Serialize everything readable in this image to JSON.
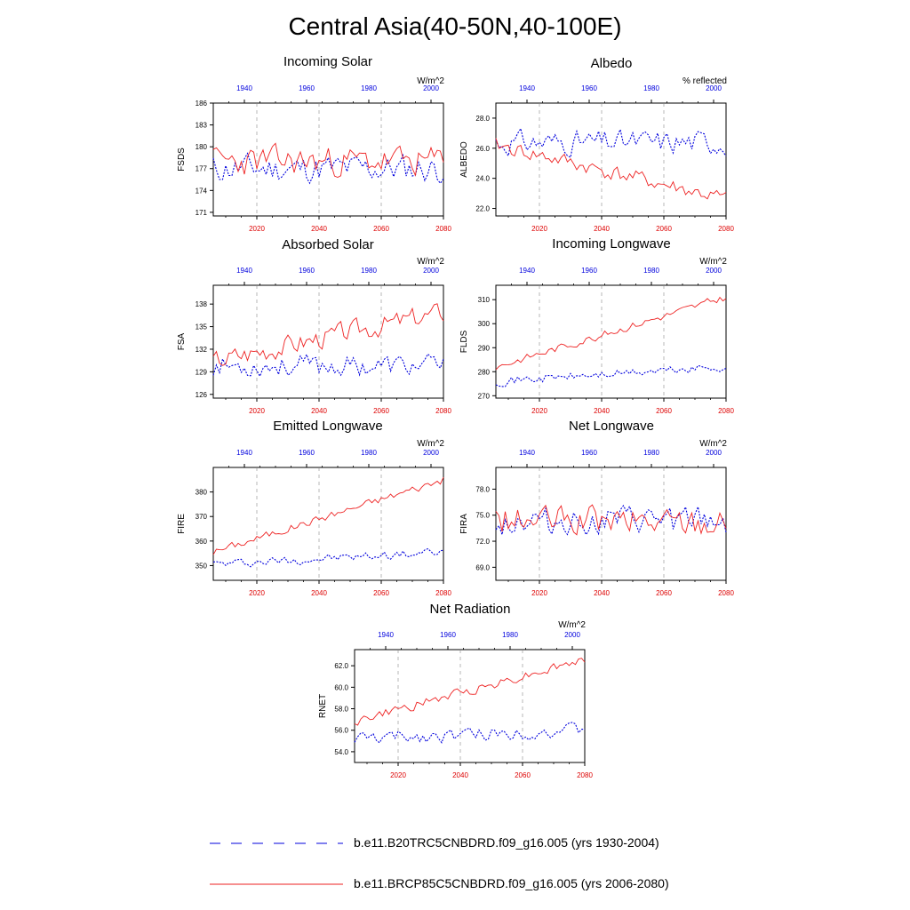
{
  "title": "Central Asia(40-50N,40-100E)",
  "colors": {
    "bottom_axis": "#dd0000",
    "top_axis": "#0000dd",
    "series1": "#0000dd",
    "series2": "#ee2222",
    "grid": "#888888"
  },
  "legend": [
    {
      "label": "b.e11.B20TRC5CNBDRD.f09_g16.005 (yrs 1930-2004)",
      "style": "dashed",
      "color": "#0000dd"
    },
    {
      "label": "b.e11.BRCP85C5CNBDRD.f09_g16.005 (yrs 2006-2080)",
      "style": "solid",
      "color": "#ee2222"
    }
  ],
  "chart_data": [
    {
      "type": "line",
      "title": "Incoming Solar",
      "units": "W/m^2",
      "ylabel": "FSDS",
      "xlim": [
        2006,
        2080
      ],
      "top_xlim": [
        1930,
        2004
      ],
      "ylim": [
        170.5,
        186.0
      ],
      "yticks": [
        171,
        174,
        177,
        180,
        183,
        186
      ],
      "ytick_labels": [
        "171",
        "174",
        "177",
        "180",
        "183",
        "186"
      ],
      "xticks": [
        2020,
        2040,
        2060,
        2080
      ],
      "top_xticks": [
        1940,
        1960,
        1980,
        2000
      ],
      "series": [
        {
          "name": "b.e11.B20TRC5CNBDRD.f09_g16.005 (yrs 1930-2004)",
          "mean": 177.0,
          "amp": 2.2,
          "trend": 0,
          "seed": 11
        },
        {
          "name": "b.e11.BRCP85C5CNBDRD.f09_g16.005 (yrs 2006-2080)",
          "mean": 178.0,
          "amp": 2.3,
          "trend": 0,
          "seed": 23
        }
      ]
    },
    {
      "type": "line",
      "title": "Albedo",
      "units": "% reflected",
      "ylabel": "ALBEDO",
      "xlim": [
        2006,
        2080
      ],
      "top_xlim": [
        1930,
        2004
      ],
      "ylim": [
        21.5,
        29.0
      ],
      "yticks": [
        22,
        24,
        26,
        28
      ],
      "ytick_labels": [
        "22.0",
        "24.0",
        "26.0",
        "28.0"
      ],
      "xticks": [
        2020,
        2040,
        2060,
        2080
      ],
      "top_xticks": [
        1940,
        1960,
        1980,
        2000
      ],
      "series": [
        {
          "name": "b.e11.B20TRC5CNBDRD.f09_g16.005 (yrs 1930-2004)",
          "mean": 26.4,
          "amp": 0.9,
          "trend": 0,
          "seed": 31
        },
        {
          "name": "b.e11.BRCP85C5CNBDRD.f09_g16.005 (yrs 2006-2080)",
          "mean": 26.2,
          "amp": 0.6,
          "trend": -3.6,
          "seed": 41
        }
      ]
    },
    {
      "type": "line",
      "title": "Absorbed Solar",
      "units": "W/m^2",
      "ylabel": "FSA",
      "xlim": [
        2006,
        2080
      ],
      "top_xlim": [
        1930,
        2004
      ],
      "ylim": [
        125.5,
        140.5
      ],
      "yticks": [
        126,
        129,
        132,
        135,
        138
      ],
      "ytick_labels": [
        "126",
        "129",
        "132",
        "135",
        "138"
      ],
      "xticks": [
        2020,
        2040,
        2060,
        2080
      ],
      "top_xticks": [
        1940,
        1960,
        1980,
        2000
      ],
      "series": [
        {
          "name": "b.e11.B20TRC5CNBDRD.f09_g16.005 (yrs 1930-2004)",
          "mean": 129.8,
          "amp": 1.6,
          "trend": 0,
          "seed": 53
        },
        {
          "name": "b.e11.BRCP85C5CNBDRD.f09_g16.005 (yrs 2006-2080)",
          "mean": 130.5,
          "amp": 1.6,
          "trend": 6.5,
          "seed": 67
        }
      ]
    },
    {
      "type": "line",
      "title": "Incoming Longwave",
      "units": "W/m^2",
      "ylabel": "FLDS",
      "xlim": [
        2006,
        2080
      ],
      "top_xlim": [
        1930,
        2004
      ],
      "ylim": [
        269.0,
        316.0
      ],
      "yticks": [
        270,
        280,
        290,
        300,
        310
      ],
      "ytick_labels": [
        "270",
        "280",
        "290",
        "300",
        "310"
      ],
      "xticks": [
        2020,
        2040,
        2060,
        2080
      ],
      "top_xticks": [
        1940,
        1960,
        1980,
        2000
      ],
      "series": [
        {
          "name": "b.e11.B20TRC5CNBDRD.f09_g16.005 (yrs 1930-2004)",
          "mean": 276.0,
          "amp": 2.0,
          "trend": 6.0,
          "seed": 71
        },
        {
          "name": "b.e11.BRCP85C5CNBDRD.f09_g16.005 (yrs 2006-2080)",
          "mean": 282.0,
          "amp": 1.8,
          "trend": 29.0,
          "seed": 83
        }
      ]
    },
    {
      "type": "line",
      "title": "Emitted Longwave",
      "units": "W/m^2",
      "ylabel": "FIRE",
      "xlim": [
        2006,
        2080
      ],
      "top_xlim": [
        1930,
        2004
      ],
      "ylim": [
        344.0,
        390.0
      ],
      "yticks": [
        350,
        360,
        370,
        380
      ],
      "ytick_labels": [
        "350",
        "360",
        "370",
        "380"
      ],
      "xticks": [
        2020,
        2040,
        2060,
        2080
      ],
      "top_xticks": [
        1940,
        1960,
        1980,
        2000
      ],
      "series": [
        {
          "name": "b.e11.B20TRC5CNBDRD.f09_g16.005 (yrs 1930-2004)",
          "mean": 350.5,
          "amp": 2.0,
          "trend": 5.0,
          "seed": 97
        },
        {
          "name": "b.e11.BRCP85C5CNBDRD.f09_g16.005 (yrs 2006-2080)",
          "mean": 355.5,
          "amp": 1.8,
          "trend": 29.5,
          "seed": 101
        }
      ]
    },
    {
      "type": "line",
      "title": "Net Longwave",
      "units": "W/m^2",
      "ylabel": "FIRA",
      "xlim": [
        2006,
        2080
      ],
      "top_xlim": [
        1930,
        2004
      ],
      "ylim": [
        67.5,
        80.5
      ],
      "yticks": [
        69,
        72,
        75,
        78
      ],
      "ytick_labels": [
        "69.0",
        "72.0",
        "75.0",
        "78.0"
      ],
      "xticks": [
        2020,
        2040,
        2060,
        2080
      ],
      "top_xticks": [
        1940,
        1960,
        1980,
        2000
      ],
      "series": [
        {
          "name": "b.e11.B20TRC5CNBDRD.f09_g16.005 (yrs 1930-2004)",
          "mean": 74.3,
          "amp": 1.8,
          "trend": 0,
          "seed": 113
        },
        {
          "name": "b.e11.BRCP85C5CNBDRD.f09_g16.005 (yrs 2006-2080)",
          "mean": 74.3,
          "amp": 1.9,
          "trend": 0,
          "seed": 127
        }
      ]
    },
    {
      "type": "line",
      "title": "Net Radiation",
      "units": "W/m^2",
      "ylabel": "RNET",
      "xlim": [
        2006,
        2080
      ],
      "top_xlim": [
        1930,
        2004
      ],
      "ylim": [
        53.0,
        63.5
      ],
      "yticks": [
        54,
        56,
        58,
        60,
        62
      ],
      "ytick_labels": [
        "54.0",
        "56.0",
        "58.0",
        "60.0",
        "62.0"
      ],
      "xticks": [
        2020,
        2040,
        2060,
        2080
      ],
      "top_xticks": [
        1940,
        1960,
        1980,
        2000
      ],
      "series": [
        {
          "name": "b.e11.B20TRC5CNBDRD.f09_g16.005 (yrs 1930-2004)",
          "mean": 55.2,
          "amp": 0.7,
          "trend": 0.8,
          "seed": 131
        },
        {
          "name": "b.e11.BRCP85C5CNBDRD.f09_g16.005 (yrs 2006-2080)",
          "mean": 56.8,
          "amp": 0.5,
          "trend": 5.8,
          "seed": 149
        }
      ]
    }
  ]
}
